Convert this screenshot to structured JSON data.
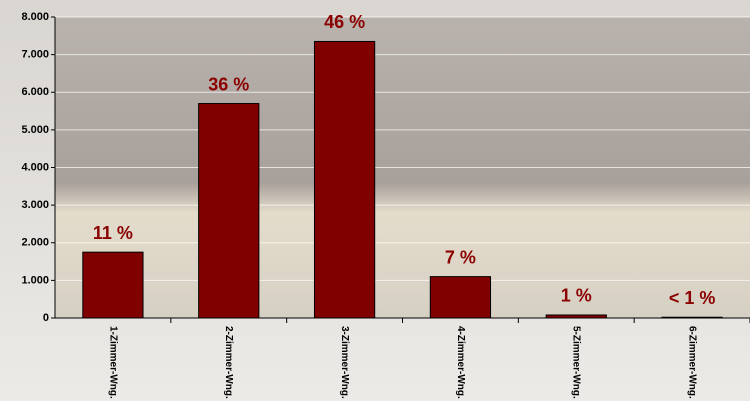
{
  "chart_data": {
    "type": "bar",
    "categories": [
      "1-Zimmer-Wng.",
      "2-Zimmer-Wng.",
      "3-Zimmer-Wng.",
      "4-Zimmer-Wng.",
      "5-Zimmer-Wng.",
      "6-Zimmer-Wng."
    ],
    "values": [
      1750,
      5700,
      7350,
      1100,
      80,
      20
    ],
    "annotations": [
      "11 %",
      "36 %",
      "46 %",
      "7 %",
      "1 %",
      "< 1 %"
    ],
    "color": "#800000",
    "ylim": [
      0,
      8000
    ],
    "yticks": [
      0,
      {
        "value": 1000,
        "label": "1.000"
      },
      {
        "value": 2000,
        "label": "2.000"
      },
      {
        "value": 3000,
        "label": "3.000"
      },
      {
        "value": 4000,
        "label": "4.000"
      },
      {
        "value": 5000,
        "label": "5.000"
      },
      {
        "value": 6000,
        "label": "6.000"
      },
      {
        "value": 7000,
        "label": "7.000"
      },
      {
        "value": 8000,
        "label": "8.000"
      }
    ],
    "grid": true
  }
}
